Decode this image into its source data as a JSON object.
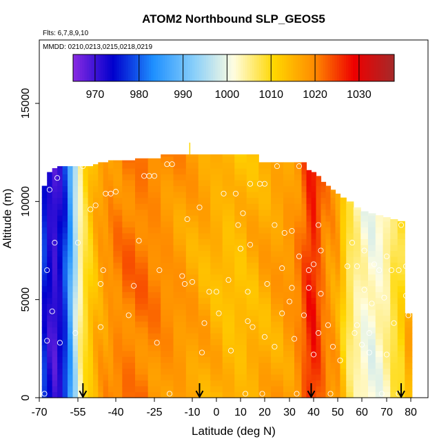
{
  "chart_data": {
    "type": "heatmap",
    "title": "ATOM2 Northbound SLP_GEOS5",
    "subtitle_flights": "Flts: 6,7,8,9,10",
    "subtitle_dates": "MMDD: 0210,0213,0215,0218,0219",
    "xlabel": "Latitude (deg N)",
    "ylabel": "Altitude (m)",
    "xlim": [
      -70,
      85
    ],
    "ylim": [
      0,
      17500
    ],
    "xticks": [
      -70,
      -55,
      -40,
      -25,
      -10,
      0,
      10,
      20,
      30,
      40,
      50,
      60,
      70,
      80
    ],
    "xtick_labels": [
      "-70",
      "-55",
      "-40",
      "-25",
      "-10",
      "0",
      "10",
      "20",
      "30",
      "40",
      "50",
      "60",
      "70",
      "80"
    ],
    "yticks": [
      0,
      5000,
      10000,
      15000
    ],
    "ytick_labels": [
      "0",
      "5000",
      "10000",
      "15000"
    ],
    "colorbar": {
      "range": [
        965,
        1038
      ],
      "ticks": [
        970,
        980,
        990,
        1000,
        1010,
        1020,
        1030
      ],
      "tick_labels": [
        "970",
        "980",
        "990",
        "1000",
        "1010",
        "1020",
        "1030"
      ],
      "colors": [
        "#8a2be2",
        "#0000cd",
        "#1e90ff",
        "#87cefa",
        "#fffde0",
        "#ffd700",
        "#ff8c00",
        "#ee0000",
        "#a52a2a"
      ]
    },
    "field": {
      "x": [
        -68,
        -66,
        -64,
        -62,
        -60,
        -58,
        -56,
        -54,
        -52,
        -50,
        -48,
        -46,
        -44,
        -42,
        -40,
        -35,
        -30,
        -25,
        -20,
        -15,
        -10,
        -5,
        0,
        5,
        10,
        15,
        20,
        25,
        30,
        34,
        36,
        38,
        40,
        42,
        44,
        46,
        48,
        50,
        52,
        55,
        58,
        61,
        64,
        67,
        70,
        73,
        76,
        79
      ],
      "profile": [
        976,
        972,
        970,
        973,
        978,
        986,
        996,
        1004,
        1009,
        1012,
        1015,
        1017,
        1018,
        1019,
        1020,
        1021,
        1021,
        1020,
        1019,
        1018,
        1017,
        1016,
        1015,
        1014,
        1014,
        1015,
        1016,
        1017,
        1018,
        1020,
        1023,
        1026,
        1027,
        1024,
        1021,
        1019,
        1018,
        1017,
        1012,
        1007,
        1004,
        1002,
        1001,
        1002,
        1004,
        1008,
        1010,
        1015
      ],
      "top_altitude": [
        10800,
        11500,
        11700,
        11800,
        11800,
        11800,
        11800,
        11800,
        11800,
        11800,
        11900,
        12000,
        12000,
        12100,
        12100,
        12100,
        12200,
        12200,
        12400,
        12400,
        12400,
        12400,
        12400,
        12400,
        12400,
        12400,
        12000,
        12000,
        12000,
        12000,
        12000,
        11600,
        11500,
        11300,
        11000,
        10800,
        10600,
        10400,
        10200,
        10000,
        9700,
        9500,
        9400,
        9300,
        9200,
        9100,
        9000,
        4300
      ]
    },
    "flight_tracks": {
      "marker": "white open circle",
      "points": [
        [
          -68,
          200
        ],
        [
          -67,
          2900
        ],
        [
          -67,
          6500
        ],
        [
          -66,
          10600
        ],
        [
          -65,
          4400
        ],
        [
          -64,
          7900
        ],
        [
          -63,
          11200
        ],
        [
          -62,
          2800
        ],
        [
          -56,
          3300
        ],
        [
          -55,
          7900
        ],
        [
          -53,
          11800
        ],
        [
          -50,
          9600
        ],
        [
          -48,
          9800
        ],
        [
          -46,
          3600
        ],
        [
          -46,
          5800
        ],
        [
          -45,
          6500
        ],
        [
          -44,
          10400
        ],
        [
          -42,
          10400
        ],
        [
          -40,
          10500
        ],
        [
          -35,
          4200
        ],
        [
          -33,
          5700
        ],
        [
          -31,
          8000
        ],
        [
          -29,
          11300
        ],
        [
          -27,
          11300
        ],
        [
          -25,
          11300
        ],
        [
          -24,
          2800
        ],
        [
          -23,
          6500
        ],
        [
          -20,
          11900
        ],
        [
          -19,
          200
        ],
        [
          -18,
          11900
        ],
        [
          -14,
          6200
        ],
        [
          -13,
          5800
        ],
        [
          -12,
          9100
        ],
        [
          -10,
          5900
        ],
        [
          -7,
          9700
        ],
        [
          -6,
          2300
        ],
        [
          -5,
          3800
        ],
        [
          -3,
          5400
        ],
        [
          0,
          5400
        ],
        [
          1,
          4300
        ],
        [
          3,
          10400
        ],
        [
          5,
          6000
        ],
        [
          6,
          2400
        ],
        [
          8,
          10400
        ],
        [
          9,
          8800
        ],
        [
          10,
          7600
        ],
        [
          11,
          9400
        ],
        [
          12,
          200
        ],
        [
          13,
          3900
        ],
        [
          13,
          5400
        ],
        [
          14,
          7800
        ],
        [
          14,
          10900
        ],
        [
          15,
          3600
        ],
        [
          18,
          10900
        ],
        [
          19,
          200
        ],
        [
          20,
          3100
        ],
        [
          20,
          10900
        ],
        [
          21,
          5800
        ],
        [
          24,
          2600
        ],
        [
          24,
          8800
        ],
        [
          25,
          11800
        ],
        [
          27,
          6600
        ],
        [
          27,
          4300
        ],
        [
          28,
          8400
        ],
        [
          30,
          4900
        ],
        [
          31,
          5600
        ],
        [
          31,
          8500
        ],
        [
          32,
          3000
        ],
        [
          33,
          200
        ],
        [
          34,
          11800
        ],
        [
          34,
          7200
        ],
        [
          36,
          4200
        ],
        [
          38,
          5600
        ],
        [
          38,
          6500
        ],
        [
          40,
          6800
        ],
        [
          40,
          2200
        ],
        [
          42,
          3300
        ],
        [
          42,
          8800
        ],
        [
          43,
          5300
        ],
        [
          43,
          7500
        ],
        [
          46,
          3700
        ],
        [
          47,
          200
        ],
        [
          48,
          2600
        ],
        [
          51,
          1900
        ],
        [
          54,
          6700
        ],
        [
          56,
          7900
        ],
        [
          57,
          3300
        ],
        [
          58,
          6700
        ],
        [
          58,
          3700
        ],
        [
          60,
          2700
        ],
        [
          61,
          7500
        ],
        [
          61,
          5500
        ],
        [
          63,
          3300
        ],
        [
          63,
          2300
        ],
        [
          64,
          4800
        ],
        [
          65,
          6800
        ],
        [
          67,
          6500
        ],
        [
          68,
          200
        ],
        [
          69,
          5100
        ],
        [
          70,
          7200
        ],
        [
          70,
          2200
        ],
        [
          72,
          6500
        ],
        [
          73,
          3800
        ],
        [
          75,
          6500
        ],
        [
          75,
          200
        ],
        [
          76,
          8800
        ],
        [
          78,
          6700
        ],
        [
          78,
          5200
        ],
        [
          79,
          4200
        ]
      ]
    },
    "arrows_at_latitude": [
      -53,
      -7,
      39,
      76
    ]
  }
}
